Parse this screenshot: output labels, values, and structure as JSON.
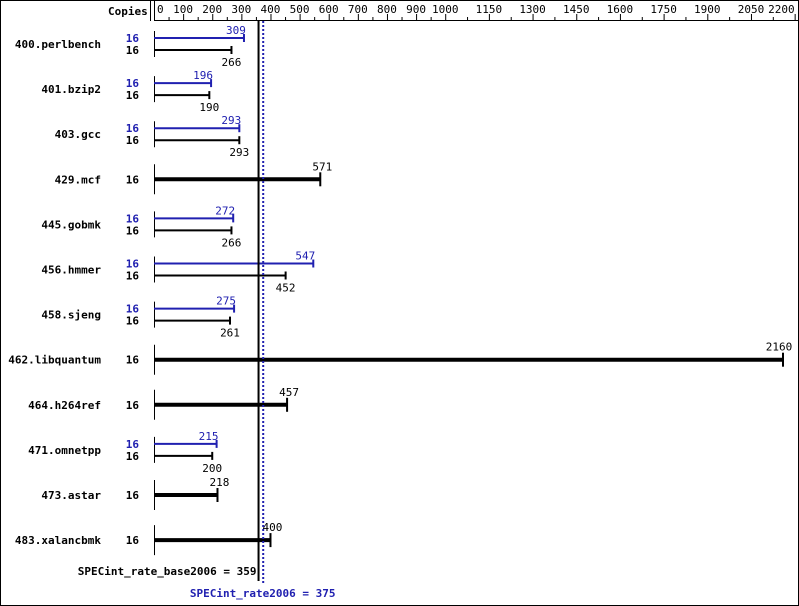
{
  "chart_data": {
    "type": "bar",
    "orientation": "horizontal",
    "header": "Copies",
    "xlim": [
      0,
      2200
    ],
    "ticks": [
      0,
      100,
      200,
      300,
      400,
      500,
      600,
      700,
      800,
      900,
      1000,
      1150,
      1300,
      1450,
      1600,
      1750,
      1900,
      2050,
      2200
    ],
    "colors": {
      "base": "#000000",
      "peak": "#2020b0"
    },
    "benchmarks": [
      {
        "name": "400.perlbench",
        "peak_copies": "16",
        "peak": 309,
        "base_copies": "16",
        "base": 266
      },
      {
        "name": "401.bzip2",
        "peak_copies": "16",
        "peak": 196,
        "base_copies": "16",
        "base": 190
      },
      {
        "name": "403.gcc",
        "peak_copies": "16",
        "peak": 293,
        "base_copies": "16",
        "base": 293
      },
      {
        "name": "429.mcf",
        "base_copies": "16",
        "base": 571
      },
      {
        "name": "445.gobmk",
        "peak_copies": "16",
        "peak": 272,
        "base_copies": "16",
        "base": 266
      },
      {
        "name": "456.hmmer",
        "peak_copies": "16",
        "peak": 547,
        "base_copies": "16",
        "base": 452
      },
      {
        "name": "458.sjeng",
        "peak_copies": "16",
        "peak": 275,
        "base_copies": "16",
        "base": 261
      },
      {
        "name": "462.libquantum",
        "base_copies": "16",
        "base": 2160
      },
      {
        "name": "464.h264ref",
        "base_copies": "16",
        "base": 457
      },
      {
        "name": "471.omnetpp",
        "peak_copies": "16",
        "peak": 215,
        "base_copies": "16",
        "base": 200
      },
      {
        "name": "473.astar",
        "base_copies": "16",
        "base": 218
      },
      {
        "name": "483.xalancbmk",
        "base_copies": "16",
        "base": 400
      }
    ],
    "base_summary": {
      "label": "SPECint_rate_base2006 = 359",
      "value": 359
    },
    "peak_summary": {
      "label": "SPECint_rate2006 = 375",
      "value": 375
    }
  }
}
